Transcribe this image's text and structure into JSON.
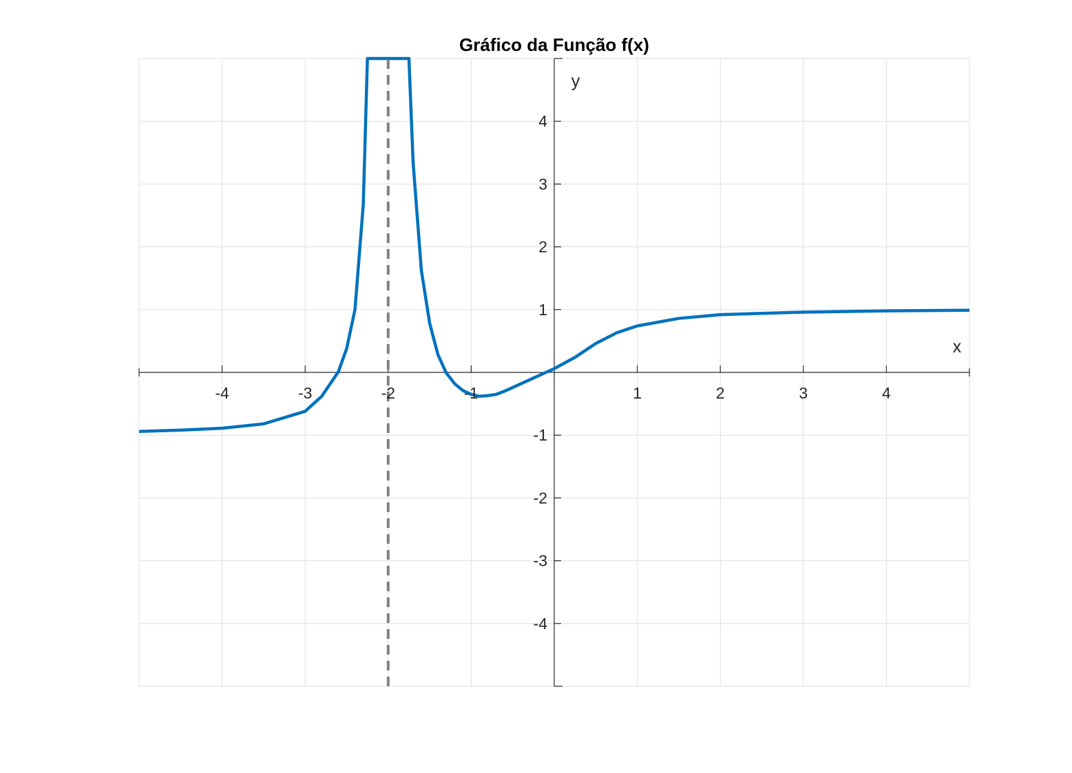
{
  "chart_data": {
    "type": "line",
    "title": "Gráfico da Função f(x)",
    "xlabel": "x",
    "ylabel": "y",
    "xlim": [
      -5,
      5
    ],
    "ylim": [
      -5,
      5
    ],
    "grid": true,
    "axis_location": "origin",
    "x_ticks": [
      -4,
      -3,
      -2,
      -1,
      1,
      2,
      3,
      4
    ],
    "x_tick_labels": [
      "-4",
      "-3",
      "-2",
      "-1",
      "1",
      "2",
      "3",
      "4"
    ],
    "y_ticks": [
      -4,
      -3,
      -2,
      -1,
      1,
      2,
      3,
      4
    ],
    "y_tick_labels": [
      "-4",
      "-3",
      "-2",
      "-1",
      "1",
      "2",
      "3",
      "4"
    ],
    "series": [
      {
        "color": "#0072BD",
        "style": "solid",
        "x": [
          -5,
          -4.5,
          -4,
          -3.5,
          -3,
          -2.8,
          -2.6,
          -2.5,
          -2.4,
          -2.3,
          -2.25,
          -1.75,
          -1.7,
          -1.6,
          -1.5,
          -1.4,
          -1.3,
          -1.2,
          -1.1,
          -1,
          -0.9,
          -0.8,
          -0.7,
          -0.6,
          -0.5,
          -0.4,
          -0.3,
          -0.2,
          -0.1,
          0,
          0.25,
          0.5,
          0.75,
          1,
          1.5,
          2,
          2.5,
          3,
          4,
          5
        ],
        "y": [
          -0.94,
          -0.92,
          -0.89,
          -0.82,
          -0.62,
          -0.38,
          0.01,
          0.38,
          1.0,
          2.67,
          5.0,
          5.0,
          3.35,
          1.62,
          0.78,
          0.28,
          -0.01,
          -0.18,
          -0.29,
          -0.35,
          -0.38,
          -0.37,
          -0.35,
          -0.3,
          -0.24,
          -0.18,
          -0.12,
          -0.06,
          0.0,
          0.06,
          0.24,
          0.46,
          0.63,
          0.74,
          0.86,
          0.92,
          0.94,
          0.96,
          0.98,
          0.99
        ]
      },
      {
        "color": "#808080",
        "style": "dashed",
        "x": [
          -2,
          -2
        ],
        "y": [
          -5,
          5
        ]
      }
    ]
  }
}
